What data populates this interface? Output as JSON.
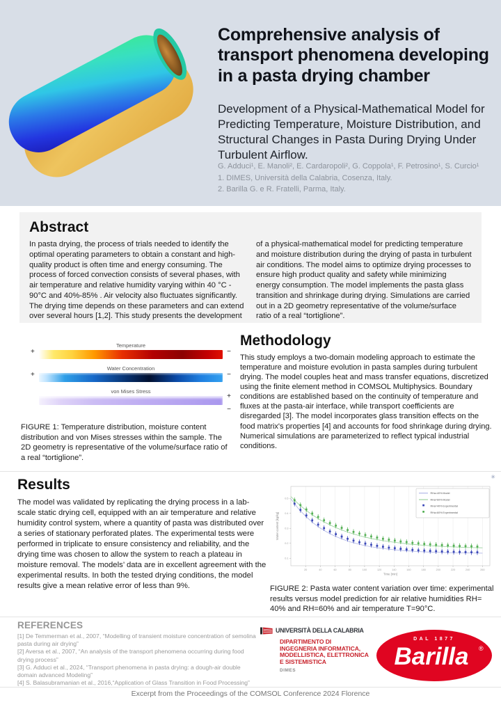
{
  "header": {
    "title": "Comprehensive analysis of transport phenomena developing in a pasta drying chamber",
    "subtitle": "Development of a Physical-Mathematical Model for Predicting Temperature, Moisture Distribution, and Structural Changes in Pasta During Drying Under Turbulent Airflow.",
    "authors": "G. Adduci¹, E. Manoli², E. Cardaropoli², G. Coppola¹, F. Petrosino¹, S. Curcio¹",
    "affiliation1": "1. DIMES, Università della Calabria, Cosenza, Italy.",
    "affiliation2": "2. Barilla G. e R. Fratelli, Parma, Italy."
  },
  "abstract": {
    "heading": "Abstract",
    "col1": "In pasta drying, the process of trials needed to identify the optimal operating parameters to obtain a constant and high-quality product is often time and energy consuming. The process of forced convection consists of several phases, with air temperature and relative humidity varying within 40 °C - 90°C and 40%-85% . Air velocity also fluctuates significantly. The drying time depends on these parameters and can extend over several hours [1,2]. This study presents the development",
    "col2": "of a physical-mathematical model for predicting temperature and moisture distribution during the drying of pasta in turbulent air conditions. The model aims to optimize drying processes to ensure high product quality and safety while minimizing energy consumption. The model implements the pasta glass transition and shrinkage during drying. Simulations are carried out in a 2D geometry representative of the volume/surface ratio of a real “tortiglione”."
  },
  "figure1": {
    "bars": [
      {
        "label": "Temperature",
        "left_sign": "+",
        "right_sign": "−"
      },
      {
        "label": "Water Concentration",
        "left_sign": "+",
        "right_sign": "−"
      },
      {
        "label": "von Mises Stress",
        "right_top_sign": "+",
        "right_bottom_sign": "−"
      }
    ],
    "caption": "FIGURE 1: Temperature distribution, moisture content distribution and von Mises stresses within the sample. The 2D geometry is representative of the volume/surface ratio of a real “tortiglione”."
  },
  "methodology": {
    "heading": "Methodology",
    "text": "This study employs a two-domain modeling approach to estimate the temperature and moisture evolution in pasta samples during turbulent drying. The model couples heat and mass transfer equations, discretized using the finite element method in COMSOL Multiphysics. Boundary conditions are established based on the continuity of temperature and fluxes at the pasta-air interface, while transport coefficients are disregarded [3]. The model incorporates glass transition effects on the food matrix's properties [4] and accounts for food shrinkage during drying. Numerical simulations are parameterized to reflect typical industrial conditions."
  },
  "results": {
    "heading": "Results",
    "text": "The model was validated by replicating the drying process in a lab-scale static drying cell, equipped with an air temperature and relative humidity control system, where a quantity of pasta was distributed over a series of stationary perforated plates. The experimental tests were performed in triplicate to ensure consistency and reliability, and the drying time was chosen to allow the system to reach a plateau in moisture removal. The models’ data are in excellent agreement with the experimental results. In both the tested drying conditions, the model results give a mean relative error of less than 9%."
  },
  "figure2": {
    "caption": "FIGURE 2:  Pasta water content variation over time: experimental results versus model prediction for air relative humidities RH= 40% and RH=60% and air temperature T=90°C.",
    "corner_icon": "✳"
  },
  "chart_data": {
    "type": "scatter",
    "title": "",
    "xlabel": "Time [min]",
    "ylabel": "Water content [kg/kg]",
    "xlim": [
      0,
      270
    ],
    "ylim": [
      0.05,
      0.58
    ],
    "x_ticks": [
      20,
      40,
      60,
      80,
      100,
      120,
      140,
      160,
      180,
      200,
      220,
      240,
      260
    ],
    "y_ticks": [
      0.1,
      0.2,
      0.3,
      0.4,
      0.5
    ],
    "grid": true,
    "legend_position": "top-right",
    "series": [
      {
        "name": "RHa=40% Model",
        "type": "line",
        "color": "#98a0e0",
        "x": [
          0,
          10,
          20,
          30,
          40,
          50,
          60,
          70,
          80,
          90,
          100,
          110,
          120,
          130,
          140,
          150,
          160,
          170,
          180,
          190,
          200,
          210,
          220,
          230,
          240,
          250,
          260
        ],
        "y": [
          0.497,
          0.433,
          0.381,
          0.337,
          0.301,
          0.272,
          0.247,
          0.227,
          0.21,
          0.197,
          0.185,
          0.176,
          0.168,
          0.162,
          0.157,
          0.152,
          0.149,
          0.146,
          0.143,
          0.141,
          0.14,
          0.138,
          0.137,
          0.136,
          0.136,
          0.135,
          0.134
        ]
      },
      {
        "name": "RHa=60% Model",
        "type": "line",
        "color": "#7bc47f",
        "x": [
          0,
          10,
          20,
          30,
          40,
          50,
          60,
          70,
          80,
          90,
          100,
          110,
          120,
          130,
          140,
          150,
          160,
          170,
          180,
          190,
          200,
          210,
          220,
          230,
          240,
          250,
          260
        ],
        "y": [
          0.512,
          0.464,
          0.423,
          0.387,
          0.356,
          0.33,
          0.307,
          0.287,
          0.27,
          0.255,
          0.242,
          0.231,
          0.222,
          0.214,
          0.207,
          0.201,
          0.195,
          0.191,
          0.187,
          0.183,
          0.181,
          0.178,
          0.176,
          0.174,
          0.172,
          0.171,
          0.17
        ]
      },
      {
        "name": "RHa=40% Experimental",
        "type": "scatter",
        "color": "#3a47b8",
        "error": 0.018,
        "x": [
          5,
          13,
          21,
          29,
          37,
          45,
          53,
          61,
          69,
          77,
          85,
          93,
          101,
          109,
          117,
          125,
          133,
          141,
          149,
          157,
          165,
          173,
          181,
          189,
          197,
          205,
          213,
          221,
          229,
          237,
          245,
          253
        ],
        "y": [
          0.465,
          0.423,
          0.386,
          0.353,
          0.325,
          0.301,
          0.279,
          0.261,
          0.245,
          0.23,
          0.218,
          0.207,
          0.198,
          0.19,
          0.183,
          0.177,
          0.171,
          0.167,
          0.163,
          0.159,
          0.156,
          0.153,
          0.151,
          0.149,
          0.147,
          0.145,
          0.144,
          0.143,
          0.142,
          0.141,
          0.14,
          0.14
        ]
      },
      {
        "name": "RHa=60% Experimental",
        "type": "scatter",
        "color": "#55b055",
        "error": 0.018,
        "x": [
          5,
          13,
          21,
          29,
          37,
          45,
          53,
          61,
          69,
          77,
          85,
          93,
          101,
          109,
          117,
          125,
          133,
          141,
          149,
          157,
          165,
          173,
          181,
          189,
          197,
          205,
          213,
          221,
          229,
          237,
          245,
          253
        ],
        "y": [
          0.488,
          0.455,
          0.426,
          0.399,
          0.376,
          0.354,
          0.335,
          0.318,
          0.303,
          0.289,
          0.276,
          0.265,
          0.255,
          0.246,
          0.238,
          0.23,
          0.224,
          0.218,
          0.212,
          0.208,
          0.203,
          0.2,
          0.196,
          0.193,
          0.19,
          0.188,
          0.186,
          0.184,
          0.182,
          0.181,
          0.18,
          0.178
        ]
      }
    ]
  },
  "references": {
    "heading": "REFERENCES",
    "items": [
      "[1] De Temmerman et al., 2007,  “Modelling of transient moisture concentration of semolina pasta during air drying”",
      "[2] Aversa et al., 2007, “An analysis of the transport phenomena occurring during food drying process”",
      "[3] G. Adduci et al., 2024, “Transport phenomena in pasta drying: a dough-air double domain advanced Modeling”",
      "[4] S. Balasubramanian et al., 2016,“Application of Glass Transition in Food Processing”"
    ]
  },
  "logos": {
    "unical": {
      "name": "UNIVERSITÀ DELLA CALABRIA",
      "dept_line1": "DIPARTIMENTO DI",
      "dept_line2": "INGEGNERIA INFORMATICA,",
      "dept_line3": "MODELLISTICA, ELETTRONICA",
      "dept_line4": "E SISTEMISTICA",
      "acronym": "DIMES",
      "red": "#c8232c"
    },
    "barilla": {
      "name": "Barilla",
      "tagline": "DAL 1877",
      "reg": "®",
      "red": "#e00521"
    }
  },
  "footer": {
    "text": "Excerpt from the Proceedings of the COMSOL Conference 2024 Florence"
  },
  "colors": {
    "header_bg": "#d8dee7",
    "abstract_bg": "#f2f2f2",
    "author_gray": "#8d939c",
    "reference_gray": "#9a9a9a",
    "series_blue": "#3a47b8",
    "series_green": "#55b055"
  }
}
